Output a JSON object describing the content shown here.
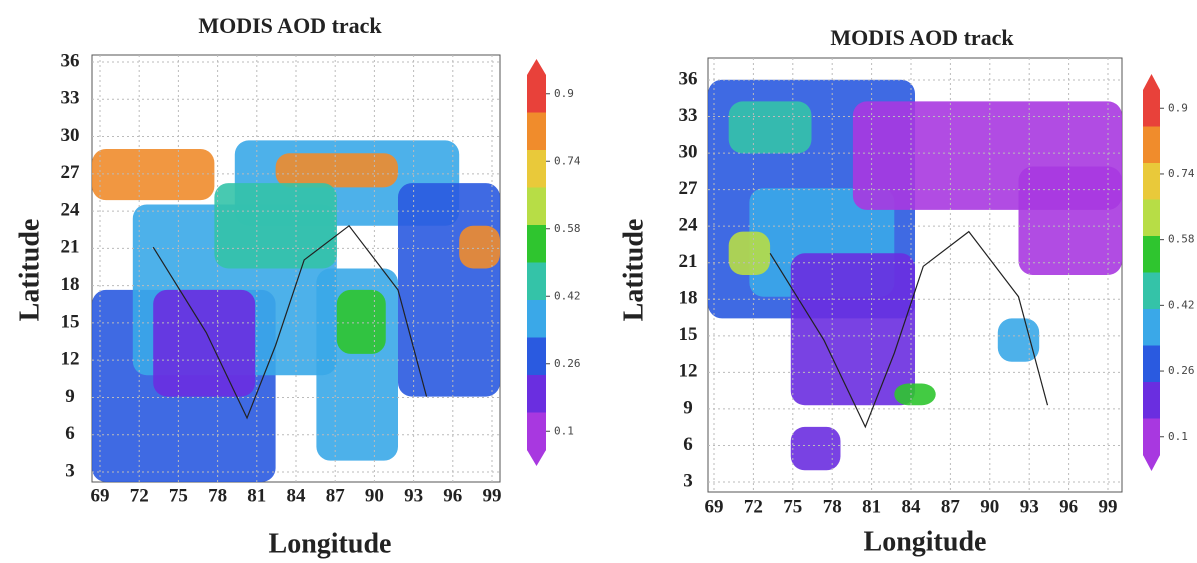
{
  "panels": [
    {
      "title": "MODIS AOD track",
      "xlabel": "Longitude",
      "ylabel": "Latitude",
      "xticks": [
        69,
        72,
        75,
        78,
        81,
        84,
        87,
        90,
        93,
        96,
        99
      ],
      "yticks": [
        3,
        6,
        9,
        12,
        15,
        18,
        21,
        24,
        27,
        30,
        33,
        36
      ],
      "colorbar_ticks": [
        0.9,
        0.74,
        0.58,
        0.42,
        0.26,
        0.1
      ]
    },
    {
      "title": "MODIS AOD track",
      "xlabel": "Longitude",
      "ylabel": "Latitude",
      "xticks": [
        69,
        72,
        75,
        78,
        81,
        84,
        87,
        90,
        93,
        96,
        99
      ],
      "yticks": [
        3,
        6,
        9,
        12,
        15,
        18,
        21,
        24,
        27,
        30,
        33,
        36
      ],
      "colorbar_ticks": [
        0.9,
        0.74,
        0.58,
        0.42,
        0.26,
        0.1
      ]
    }
  ],
  "colorbar_colors": [
    "#e8413a",
    "#f08c2c",
    "#e9c93a",
    "#b7dd46",
    "#2fc52f",
    "#34c3a8",
    "#3aa8e8",
    "#2a5ae0",
    "#6a2ee0",
    "#a838e0"
  ]
}
